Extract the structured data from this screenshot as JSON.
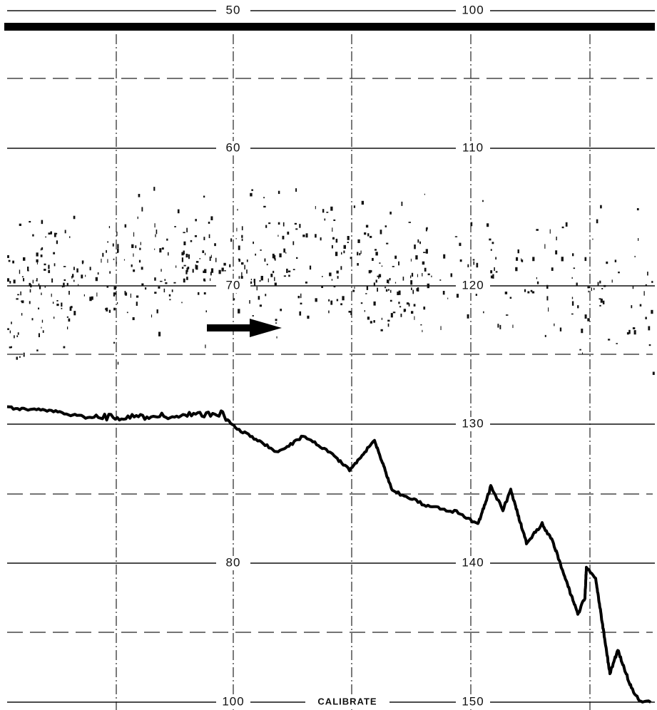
{
  "scale": {
    "rows": [
      {
        "left": "50",
        "right": "100"
      },
      {
        "left": "60",
        "right": "110"
      },
      {
        "left": "70",
        "right": "120"
      },
      {
        "right": "130"
      },
      {
        "left": "80",
        "right": "140"
      },
      {
        "left": "100",
        "right": "150"
      }
    ],
    "calibrate": "CALIBRATE"
  }
}
